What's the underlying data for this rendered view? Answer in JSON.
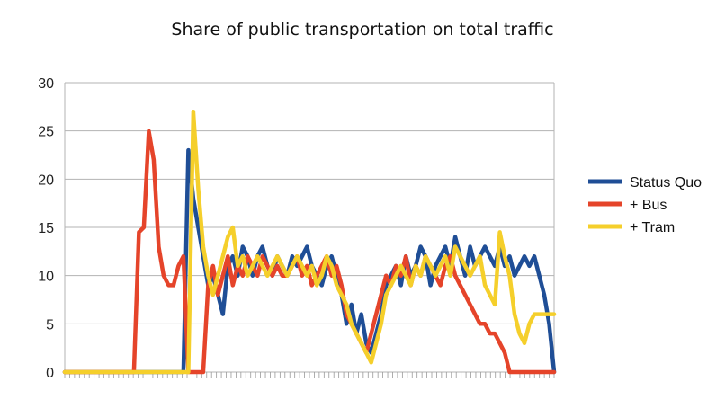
{
  "chart_data": {
    "type": "line",
    "title": "Share of public transportation on total traffic",
    "xlabel": "",
    "ylabel": "",
    "ylim": [
      0,
      30
    ],
    "yticks": [
      "0",
      "5",
      "10",
      "15",
      "20",
      "25",
      "30"
    ],
    "grid": true,
    "legend_position": "right",
    "x_unlabeled_categories": 100,
    "series": [
      {
        "name": "Status Quo",
        "color": "#1f4e96",
        "values": [
          0,
          0,
          0,
          0,
          0,
          0,
          0,
          0,
          0,
          0,
          0,
          0,
          0,
          0,
          0,
          0,
          0,
          0,
          0,
          0,
          0,
          0,
          0,
          0,
          0,
          23,
          18,
          15,
          12,
          9,
          10,
          8,
          6,
          11,
          12,
          10,
          13,
          12,
          10,
          12,
          13,
          11,
          10,
          12,
          11,
          10,
          12,
          11,
          12,
          13,
          11,
          10,
          9,
          11,
          12,
          10,
          8,
          5,
          7,
          4,
          6,
          3,
          2,
          4,
          6,
          9,
          10,
          11,
          9,
          12,
          10,
          11,
          13,
          12,
          9,
          11,
          12,
          13,
          11,
          14,
          12,
          10,
          13,
          11,
          12,
          13,
          12,
          11,
          13,
          11,
          12,
          10,
          11,
          12,
          11,
          12,
          10,
          8,
          5,
          0
        ]
      },
      {
        "name": "+ Bus",
        "color": "#e5442a",
        "values": [
          0,
          0,
          0,
          0,
          0,
          0,
          0,
          0,
          0,
          0,
          0,
          0,
          0,
          0,
          0,
          14.5,
          15,
          25,
          22,
          13,
          10,
          9,
          9,
          11,
          12,
          0,
          0,
          0,
          0,
          9,
          11,
          8,
          10,
          12,
          9,
          11,
          10,
          12,
          11,
          10,
          12,
          11,
          10,
          11,
          10,
          10,
          11,
          12,
          10,
          11,
          9,
          10,
          11,
          12,
          10,
          11,
          9,
          6,
          5,
          4,
          3,
          2,
          4,
          6,
          8,
          10,
          9,
          11,
          10,
          12,
          9,
          11,
          10,
          12,
          11,
          10,
          9,
          11,
          12,
          10,
          9,
          8,
          7,
          6,
          5,
          5,
          4,
          4,
          3,
          2,
          0,
          0,
          0,
          0,
          0,
          0,
          0,
          0,
          0,
          0
        ]
      },
      {
        "name": "+ Tram",
        "color": "#f5cf2b",
        "values": [
          0,
          0,
          0,
          0,
          0,
          0,
          0,
          0,
          0,
          0,
          0,
          0,
          0,
          0,
          0,
          0,
          0,
          0,
          0,
          0,
          0,
          0,
          0,
          0,
          0,
          0,
          27,
          19,
          13,
          10,
          8,
          10,
          12,
          14,
          15,
          11,
          12,
          10,
          11,
          12,
          11,
          10,
          11,
          12,
          11,
          10,
          11,
          12,
          11,
          10,
          11,
          9,
          10,
          12,
          11,
          9,
          8,
          7,
          5,
          4,
          3,
          2,
          1,
          3,
          5,
          8,
          9,
          10,
          11,
          10,
          9,
          11,
          10,
          12,
          11,
          10,
          11,
          12,
          10,
          13,
          12,
          11,
          10,
          11,
          12,
          9,
          8,
          7,
          14.5,
          12,
          10,
          6,
          4,
          3,
          5,
          6,
          6,
          6,
          6,
          6
        ]
      }
    ]
  }
}
